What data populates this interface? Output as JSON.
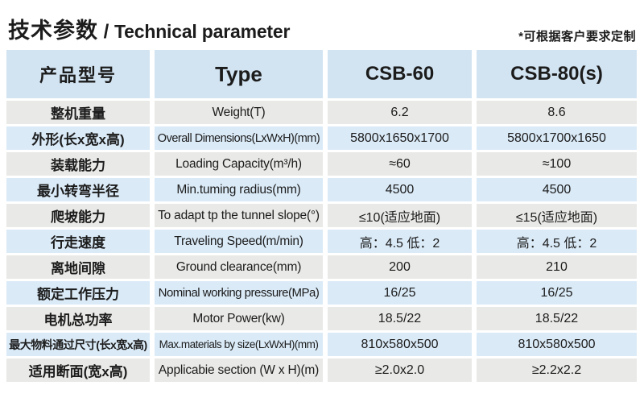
{
  "colors": {
    "header_bg": "#d2e4f2",
    "row_blue": "#daeaf7",
    "row_gray": "#e9e9e7",
    "text": "#1c1c1c",
    "page_bg": "#ffffff"
  },
  "page": {
    "title_zh": "技术参数",
    "title_sep": " / ",
    "title_en": "Technical parameter",
    "note": "*可根据客户要求定制"
  },
  "table": {
    "header": {
      "product_label_zh": "产品型号",
      "type_label": "Type",
      "model_1": "CSB-60",
      "model_2": "CSB-80(s)"
    },
    "rows": [
      {
        "zh": "整机重量",
        "en": "Weight(T)",
        "v1": "6.2",
        "v2": "8.6"
      },
      {
        "zh": "外形(长x宽x高)",
        "en": "Overall Dimensions(LxWxH)(mm)",
        "v1": "5800x1650x1700",
        "v2": "5800x1700x1650"
      },
      {
        "zh": "装载能力",
        "en": "Loading Capacity(m³/h)",
        "v1": "≈60",
        "v2": "≈100"
      },
      {
        "zh": "最小转弯半径",
        "en": "Min.tuming radius(mm)",
        "v1": "4500",
        "v2": "4500"
      },
      {
        "zh": "爬坡能力",
        "en": "To adapt tp the tunnel slope(°)",
        "v1": "≤10(适应地面)",
        "v2": "≤15(适应地面)"
      },
      {
        "zh": "行走速度",
        "en": "Traveling Speed(m/min)",
        "v1": "高：4.5 低：2",
        "v2": "高：4.5 低：2"
      },
      {
        "zh": "离地间隙",
        "en": "Ground clearance(mm)",
        "v1": "200",
        "v2": "210"
      },
      {
        "zh": "额定工作压力",
        "en": "Nominal working pressure(MPa)",
        "v1": "16/25",
        "v2": "16/25"
      },
      {
        "zh": "电机总功率",
        "en": "Motor Power(kw)",
        "v1": "18.5/22",
        "v2": "18.5/22"
      },
      {
        "zh": "最大物料通过尺寸(长x宽x高)",
        "en": "Max.materials by size(LxWxH)(mm)",
        "v1": "810x580x500",
        "v2": "810x580x500"
      },
      {
        "zh": "适用断面(宽x高)",
        "en": "Applicabie section (W x H)(m)",
        "v1": "≥2.0x2.0",
        "v2": "≥2.2x2.2"
      }
    ]
  }
}
